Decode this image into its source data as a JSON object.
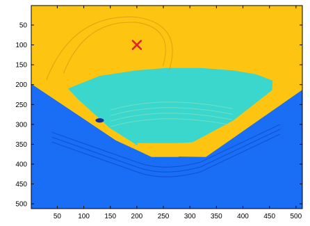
{
  "chart_data": {
    "type": "heatmap",
    "title": "",
    "xlabel": "",
    "ylabel": "",
    "xlim": [
      1,
      512
    ],
    "ylim": [
      1,
      512
    ],
    "y_direction": "reversed",
    "grid": false,
    "x_ticks": [
      50,
      100,
      150,
      200,
      250,
      300,
      350,
      400,
      450,
      500
    ],
    "y_ticks": [
      50,
      100,
      150,
      200,
      250,
      300,
      350,
      400,
      450,
      500
    ],
    "regions": [
      {
        "name": "upper layer",
        "color": "#fdc511"
      },
      {
        "name": "middle layer",
        "color": "#3bd6cc"
      },
      {
        "name": "lower layer",
        "color": "#1a6ef5"
      }
    ],
    "boundaries": {
      "blue_left_edge": [
        [
          1,
          198
        ],
        [
          160,
          340
        ],
        [
          225,
          380
        ],
        [
          330,
          382
        ],
        [
          383,
          333
        ],
        [
          512,
          213
        ]
      ],
      "cyan_fan": [
        [
          70,
          210
        ],
        [
          130,
          178
        ],
        [
          200,
          164
        ],
        [
          255,
          158
        ],
        [
          320,
          158
        ],
        [
          380,
          164
        ],
        [
          425,
          174
        ],
        [
          456,
          190
        ],
        [
          455,
          214
        ],
        [
          382,
          290
        ],
        [
          305,
          345
        ],
        [
          200,
          352
        ],
        [
          150,
          310
        ],
        [
          90,
          238
        ]
      ],
      "bottom_pocket": [
        [
          200,
          347
        ],
        [
          212,
          372
        ],
        [
          228,
          382
        ],
        [
          278,
          382
        ],
        [
          294,
          370
        ],
        [
          303,
          347
        ]
      ]
    },
    "source_marker": {
      "label": "×",
      "x": 200,
      "y": 100,
      "color": "#e8202a"
    },
    "inclusion": {
      "x": 130,
      "y": 290,
      "color": "#0f2d9e"
    }
  }
}
